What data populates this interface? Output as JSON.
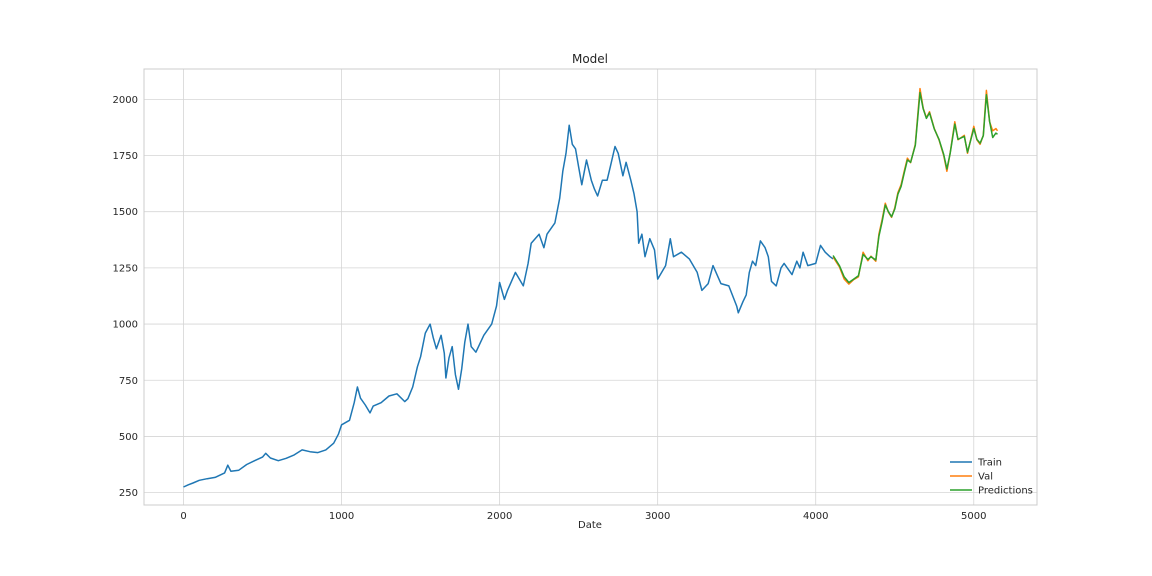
{
  "chart_data": {
    "type": "line",
    "title": "Model",
    "xlabel": "Date",
    "ylabel": "",
    "xlim": [
      -250,
      5400
    ],
    "ylim": [
      195,
      2135
    ],
    "xticks": [
      0,
      1000,
      2000,
      3000,
      4000,
      5000
    ],
    "yticks": [
      250,
      500,
      750,
      1000,
      1250,
      1500,
      1750,
      2000
    ],
    "grid": true,
    "legend_position": "bottom-right",
    "series": [
      {
        "name": "Train",
        "color": "#1f77b4",
        "points": [
          [
            0,
            275
          ],
          [
            30,
            285
          ],
          [
            60,
            293
          ],
          [
            100,
            305
          ],
          [
            150,
            312
          ],
          [
            200,
            318
          ],
          [
            260,
            338
          ],
          [
            280,
            372
          ],
          [
            300,
            345
          ],
          [
            350,
            350
          ],
          [
            400,
            375
          ],
          [
            450,
            392
          ],
          [
            500,
            408
          ],
          [
            520,
            425
          ],
          [
            550,
            404
          ],
          [
            600,
            392
          ],
          [
            650,
            403
          ],
          [
            700,
            418
          ],
          [
            750,
            440
          ],
          [
            800,
            432
          ],
          [
            850,
            428
          ],
          [
            900,
            440
          ],
          [
            950,
            470
          ],
          [
            980,
            510
          ],
          [
            1000,
            552
          ],
          [
            1050,
            572
          ],
          [
            1080,
            650
          ],
          [
            1100,
            720
          ],
          [
            1120,
            670
          ],
          [
            1150,
            640
          ],
          [
            1180,
            605
          ],
          [
            1200,
            635
          ],
          [
            1250,
            650
          ],
          [
            1300,
            680
          ],
          [
            1350,
            690
          ],
          [
            1400,
            655
          ],
          [
            1420,
            668
          ],
          [
            1450,
            720
          ],
          [
            1480,
            810
          ],
          [
            1500,
            855
          ],
          [
            1530,
            960
          ],
          [
            1560,
            1000
          ],
          [
            1580,
            940
          ],
          [
            1600,
            890
          ],
          [
            1630,
            950
          ],
          [
            1650,
            870
          ],
          [
            1660,
            760
          ],
          [
            1680,
            850
          ],
          [
            1700,
            900
          ],
          [
            1720,
            775
          ],
          [
            1740,
            710
          ],
          [
            1760,
            800
          ],
          [
            1780,
            920
          ],
          [
            1800,
            1000
          ],
          [
            1820,
            900
          ],
          [
            1850,
            875
          ],
          [
            1900,
            950
          ],
          [
            1950,
            1000
          ],
          [
            1980,
            1080
          ],
          [
            2000,
            1185
          ],
          [
            2030,
            1110
          ],
          [
            2050,
            1150
          ],
          [
            2100,
            1230
          ],
          [
            2150,
            1170
          ],
          [
            2180,
            1270
          ],
          [
            2200,
            1360
          ],
          [
            2250,
            1400
          ],
          [
            2280,
            1340
          ],
          [
            2300,
            1400
          ],
          [
            2350,
            1450
          ],
          [
            2380,
            1560
          ],
          [
            2400,
            1680
          ],
          [
            2420,
            1760
          ],
          [
            2440,
            1885
          ],
          [
            2460,
            1800
          ],
          [
            2480,
            1780
          ],
          [
            2500,
            1700
          ],
          [
            2520,
            1620
          ],
          [
            2550,
            1730
          ],
          [
            2580,
            1640
          ],
          [
            2600,
            1600
          ],
          [
            2620,
            1570
          ],
          [
            2650,
            1640
          ],
          [
            2680,
            1640
          ],
          [
            2700,
            1700
          ],
          [
            2730,
            1790
          ],
          [
            2750,
            1760
          ],
          [
            2780,
            1660
          ],
          [
            2800,
            1720
          ],
          [
            2830,
            1640
          ],
          [
            2850,
            1580
          ],
          [
            2870,
            1500
          ],
          [
            2880,
            1360
          ],
          [
            2900,
            1400
          ],
          [
            2920,
            1300
          ],
          [
            2950,
            1380
          ],
          [
            2980,
            1330
          ],
          [
            3000,
            1200
          ],
          [
            3050,
            1260
          ],
          [
            3080,
            1380
          ],
          [
            3100,
            1300
          ],
          [
            3150,
            1320
          ],
          [
            3200,
            1290
          ],
          [
            3250,
            1230
          ],
          [
            3280,
            1150
          ],
          [
            3320,
            1180
          ],
          [
            3350,
            1260
          ],
          [
            3400,
            1180
          ],
          [
            3450,
            1170
          ],
          [
            3500,
            1080
          ],
          [
            3510,
            1050
          ],
          [
            3540,
            1100
          ],
          [
            3560,
            1130
          ],
          [
            3580,
            1230
          ],
          [
            3600,
            1280
          ],
          [
            3620,
            1260
          ],
          [
            3650,
            1370
          ],
          [
            3680,
            1340
          ],
          [
            3700,
            1300
          ],
          [
            3720,
            1190
          ],
          [
            3750,
            1170
          ],
          [
            3780,
            1250
          ],
          [
            3800,
            1270
          ],
          [
            3850,
            1220
          ],
          [
            3880,
            1280
          ],
          [
            3900,
            1250
          ],
          [
            3920,
            1320
          ],
          [
            3950,
            1260
          ],
          [
            4000,
            1270
          ],
          [
            4030,
            1350
          ],
          [
            4060,
            1320
          ],
          [
            4090,
            1300
          ],
          [
            4110,
            1290
          ]
        ]
      },
      {
        "name": "Val",
        "color": "#ff7f0e",
        "points": [
          [
            4110,
            1298
          ],
          [
            4150,
            1255
          ],
          [
            4180,
            1200
          ],
          [
            4210,
            1178
          ],
          [
            4240,
            1198
          ],
          [
            4270,
            1210
          ],
          [
            4300,
            1320
          ],
          [
            4330,
            1282
          ],
          [
            4350,
            1302
          ],
          [
            4380,
            1280
          ],
          [
            4400,
            1400
          ],
          [
            4420,
            1465
          ],
          [
            4440,
            1538
          ],
          [
            4460,
            1498
          ],
          [
            4480,
            1475
          ],
          [
            4500,
            1518
          ],
          [
            4520,
            1585
          ],
          [
            4540,
            1620
          ],
          [
            4560,
            1680
          ],
          [
            4580,
            1738
          ],
          [
            4600,
            1718
          ],
          [
            4630,
            1800
          ],
          [
            4660,
            2048
          ],
          [
            4680,
            1960
          ],
          [
            4700,
            1918
          ],
          [
            4720,
            1945
          ],
          [
            4750,
            1870
          ],
          [
            4780,
            1820
          ],
          [
            4810,
            1750
          ],
          [
            4830,
            1680
          ],
          [
            4850,
            1760
          ],
          [
            4880,
            1900
          ],
          [
            4900,
            1820
          ],
          [
            4940,
            1840
          ],
          [
            4960,
            1760
          ],
          [
            5000,
            1880
          ],
          [
            5020,
            1820
          ],
          [
            5040,
            1800
          ],
          [
            5060,
            1840
          ],
          [
            5080,
            2040
          ],
          [
            5100,
            1900
          ],
          [
            5120,
            1860
          ],
          [
            5140,
            1870
          ],
          [
            5150,
            1860
          ]
        ]
      },
      {
        "name": "Predictions",
        "color": "#2ca02c",
        "points": [
          [
            4110,
            1305
          ],
          [
            4150,
            1260
          ],
          [
            4180,
            1210
          ],
          [
            4210,
            1185
          ],
          [
            4240,
            1200
          ],
          [
            4270,
            1215
          ],
          [
            4300,
            1310
          ],
          [
            4330,
            1288
          ],
          [
            4350,
            1300
          ],
          [
            4380,
            1285
          ],
          [
            4400,
            1390
          ],
          [
            4420,
            1455
          ],
          [
            4440,
            1530
          ],
          [
            4460,
            1500
          ],
          [
            4480,
            1478
          ],
          [
            4500,
            1512
          ],
          [
            4520,
            1578
          ],
          [
            4540,
            1612
          ],
          [
            4560,
            1672
          ],
          [
            4580,
            1730
          ],
          [
            4600,
            1720
          ],
          [
            4630,
            1795
          ],
          [
            4660,
            2030
          ],
          [
            4680,
            1958
          ],
          [
            4700,
            1915
          ],
          [
            4720,
            1940
          ],
          [
            4750,
            1868
          ],
          [
            4780,
            1822
          ],
          [
            4810,
            1755
          ],
          [
            4830,
            1690
          ],
          [
            4850,
            1758
          ],
          [
            4880,
            1890
          ],
          [
            4900,
            1822
          ],
          [
            4940,
            1835
          ],
          [
            4960,
            1765
          ],
          [
            5000,
            1870
          ],
          [
            5020,
            1822
          ],
          [
            5040,
            1805
          ],
          [
            5060,
            1838
          ],
          [
            5080,
            2020
          ],
          [
            5100,
            1902
          ],
          [
            5120,
            1830
          ],
          [
            5140,
            1850
          ],
          [
            5150,
            1845
          ]
        ]
      }
    ]
  }
}
